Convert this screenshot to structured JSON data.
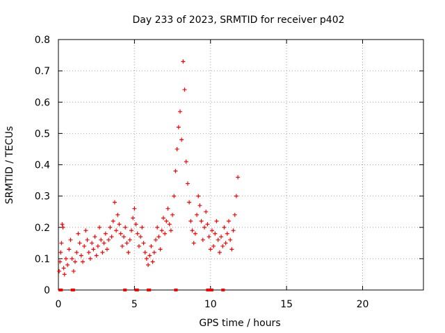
{
  "chart_data": {
    "type": "scatter",
    "title": "Day 233 of 2023, SRMTID for receiver p402",
    "xlabel": "GPS time / hours",
    "ylabel": "SRMTID / TECUs",
    "xlim": [
      0,
      24
    ],
    "ylim": [
      0,
      0.8
    ],
    "xticks": [
      0,
      5,
      10,
      15,
      20
    ],
    "yticks": [
      0,
      0.1,
      0.2,
      0.3,
      0.4,
      0.5,
      0.6,
      0.7,
      0.8
    ],
    "xtick_labels": [
      "0",
      "5",
      "10",
      "15",
      "20"
    ],
    "ytick_labels": [
      "0",
      "0.1",
      "0.2",
      "0.3",
      "0.4",
      "0.5",
      "0.6",
      "0.7",
      "0.8"
    ],
    "grid": true,
    "marker": "plus",
    "colors": {
      "series": "#ff0000",
      "grid": "#a0a0a0",
      "axis": "#000000"
    },
    "series": [
      {
        "name": "SRMTID",
        "points": [
          [
            0.05,
            0.06
          ],
          [
            0.1,
            0.09
          ],
          [
            0.15,
            0.12
          ],
          [
            0.2,
            0.15
          ],
          [
            0.25,
            0.21
          ],
          [
            0.3,
            0.2
          ],
          [
            0.35,
            0.07
          ],
          [
            0.4,
            0.05
          ],
          [
            0.5,
            0.1
          ],
          [
            0.6,
            0.08
          ],
          [
            0.7,
            0.13
          ],
          [
            0.8,
            0.16
          ],
          [
            0.9,
            0.1
          ],
          [
            1.0,
            0.06
          ],
          [
            1.1,
            0.09
          ],
          [
            1.2,
            0.12
          ],
          [
            1.3,
            0.18
          ],
          [
            1.4,
            0.15
          ],
          [
            1.5,
            0.11
          ],
          [
            1.6,
            0.09
          ],
          [
            1.7,
            0.14
          ],
          [
            1.8,
            0.19
          ],
          [
            1.9,
            0.16
          ],
          [
            2.0,
            0.12
          ],
          [
            2.1,
            0.1
          ],
          [
            2.2,
            0.15
          ],
          [
            2.3,
            0.13
          ],
          [
            2.4,
            0.17
          ],
          [
            2.5,
            0.11
          ],
          [
            2.6,
            0.14
          ],
          [
            2.7,
            0.2
          ],
          [
            2.8,
            0.16
          ],
          [
            2.9,
            0.12
          ],
          [
            3.0,
            0.15
          ],
          [
            3.1,
            0.18
          ],
          [
            3.2,
            0.13
          ],
          [
            3.3,
            0.16
          ],
          [
            3.4,
            0.2
          ],
          [
            3.5,
            0.17
          ],
          [
            3.6,
            0.22
          ],
          [
            3.7,
            0.28
          ],
          [
            3.8,
            0.19
          ],
          [
            3.9,
            0.24
          ],
          [
            4.0,
            0.21
          ],
          [
            4.1,
            0.18
          ],
          [
            4.2,
            0.14
          ],
          [
            4.3,
            0.17
          ],
          [
            4.4,
            0.2
          ],
          [
            4.5,
            0.15
          ],
          [
            4.6,
            0.12
          ],
          [
            4.7,
            0.16
          ],
          [
            4.8,
            0.19
          ],
          [
            4.9,
            0.23
          ],
          [
            5.0,
            0.26
          ],
          [
            5.1,
            0.21
          ],
          [
            5.2,
            0.18
          ],
          [
            5.3,
            0.14
          ],
          [
            5.4,
            0.17
          ],
          [
            5.5,
            0.2
          ],
          [
            5.6,
            0.15
          ],
          [
            5.7,
            0.12
          ],
          [
            5.8,
            0.1
          ],
          [
            5.9,
            0.08
          ],
          [
            6.0,
            0.11
          ],
          [
            6.1,
            0.14
          ],
          [
            6.2,
            0.09
          ],
          [
            6.3,
            0.12
          ],
          [
            6.4,
            0.16
          ],
          [
            6.5,
            0.2
          ],
          [
            6.6,
            0.17
          ],
          [
            6.7,
            0.13
          ],
          [
            6.8,
            0.19
          ],
          [
            6.9,
            0.23
          ],
          [
            7.0,
            0.18
          ],
          [
            7.1,
            0.22
          ],
          [
            7.2,
            0.26
          ],
          [
            7.3,
            0.21
          ],
          [
            7.4,
            0.19
          ],
          [
            7.5,
            0.24
          ],
          [
            7.6,
            0.3
          ],
          [
            7.7,
            0.38
          ],
          [
            7.8,
            0.45
          ],
          [
            7.9,
            0.52
          ],
          [
            8.0,
            0.57
          ],
          [
            8.1,
            0.48
          ],
          [
            8.2,
            0.73
          ],
          [
            8.3,
            0.64
          ],
          [
            8.4,
            0.41
          ],
          [
            8.5,
            0.34
          ],
          [
            8.6,
            0.28
          ],
          [
            8.7,
            0.22
          ],
          [
            8.8,
            0.19
          ],
          [
            8.9,
            0.15
          ],
          [
            9.0,
            0.18
          ],
          [
            9.1,
            0.24
          ],
          [
            9.2,
            0.3
          ],
          [
            9.3,
            0.27
          ],
          [
            9.4,
            0.22
          ],
          [
            9.5,
            0.16
          ],
          [
            9.6,
            0.2
          ],
          [
            9.7,
            0.25
          ],
          [
            9.8,
            0.21
          ],
          [
            9.9,
            0.17
          ],
          [
            10.0,
            0.13
          ],
          [
            10.1,
            0.19
          ],
          [
            10.2,
            0.14
          ],
          [
            10.3,
            0.18
          ],
          [
            10.4,
            0.22
          ],
          [
            10.5,
            0.16
          ],
          [
            10.6,
            0.12
          ],
          [
            10.7,
            0.17
          ],
          [
            10.8,
            0.14
          ],
          [
            10.9,
            0.2
          ],
          [
            11.0,
            0.15
          ],
          [
            11.1,
            0.18
          ],
          [
            11.2,
            0.22
          ],
          [
            11.3,
            0.16
          ],
          [
            11.4,
            0.13
          ],
          [
            11.5,
            0.19
          ],
          [
            11.6,
            0.24
          ],
          [
            11.7,
            0.3
          ],
          [
            11.8,
            0.36
          ]
        ]
      }
    ],
    "bottom_markers_x": [
      0.1,
      0.2,
      0.9,
      1.0,
      4.35,
      4.4,
      5.1,
      5.2,
      5.9,
      6.0,
      7.7,
      7.75,
      9.8,
      9.9,
      10.0,
      10.1,
      10.8,
      10.85
    ]
  }
}
